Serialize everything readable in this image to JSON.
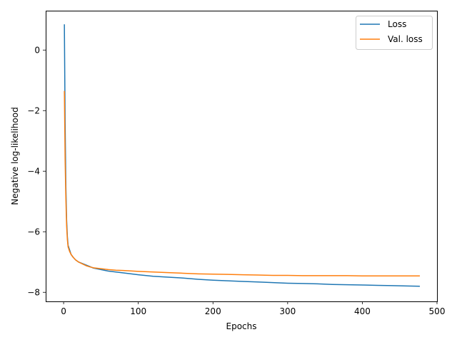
{
  "chart_data": {
    "type": "line",
    "title": "",
    "xlabel": "Epochs",
    "ylabel": "Negative log-likelihood",
    "xlim": [
      -24,
      500
    ],
    "ylim": [
      -8.3,
      1.3
    ],
    "xticks": [
      0,
      100,
      200,
      300,
      400,
      500
    ],
    "yticks": [
      -8,
      -6,
      -4,
      -2,
      0
    ],
    "grid": false,
    "legend_position": "top-right",
    "series": [
      {
        "name": "Loss",
        "color": "#1f77b4",
        "points": [
          [
            1,
            0.85
          ],
          [
            2,
            -2.4
          ],
          [
            3,
            -4.5
          ],
          [
            4,
            -5.6
          ],
          [
            5,
            -6.15
          ],
          [
            6,
            -6.45
          ],
          [
            8,
            -6.6
          ],
          [
            10,
            -6.75
          ],
          [
            13,
            -6.85
          ],
          [
            16,
            -6.93
          ],
          [
            20,
            -7.0
          ],
          [
            25,
            -7.05
          ],
          [
            30,
            -7.1
          ],
          [
            35,
            -7.15
          ],
          [
            40,
            -7.2
          ],
          [
            50,
            -7.25
          ],
          [
            60,
            -7.3
          ],
          [
            70,
            -7.33
          ],
          [
            80,
            -7.36
          ],
          [
            100,
            -7.42
          ],
          [
            120,
            -7.47
          ],
          [
            140,
            -7.5
          ],
          [
            160,
            -7.53
          ],
          [
            180,
            -7.57
          ],
          [
            200,
            -7.6
          ],
          [
            220,
            -7.62
          ],
          [
            240,
            -7.64
          ],
          [
            260,
            -7.66
          ],
          [
            280,
            -7.68
          ],
          [
            300,
            -7.7
          ],
          [
            320,
            -7.71
          ],
          [
            340,
            -7.72
          ],
          [
            360,
            -7.74
          ],
          [
            380,
            -7.75
          ],
          [
            400,
            -7.76
          ],
          [
            420,
            -7.77
          ],
          [
            440,
            -7.78
          ],
          [
            460,
            -7.79
          ],
          [
            477,
            -7.8
          ]
        ]
      },
      {
        "name": "Val. loss",
        "color": "#ff7f0e",
        "points": [
          [
            1,
            -1.35
          ],
          [
            2,
            -3.6
          ],
          [
            3,
            -4.9
          ],
          [
            4,
            -5.8
          ],
          [
            5,
            -6.25
          ],
          [
            6,
            -6.5
          ],
          [
            8,
            -6.65
          ],
          [
            10,
            -6.75
          ],
          [
            13,
            -6.85
          ],
          [
            16,
            -6.93
          ],
          [
            20,
            -7.0
          ],
          [
            25,
            -7.06
          ],
          [
            30,
            -7.12
          ],
          [
            35,
            -7.16
          ],
          [
            40,
            -7.19
          ],
          [
            50,
            -7.22
          ],
          [
            60,
            -7.25
          ],
          [
            70,
            -7.27
          ],
          [
            80,
            -7.28
          ],
          [
            100,
            -7.31
          ],
          [
            120,
            -7.33
          ],
          [
            140,
            -7.35
          ],
          [
            160,
            -7.37
          ],
          [
            180,
            -7.39
          ],
          [
            200,
            -7.4
          ],
          [
            220,
            -7.41
          ],
          [
            240,
            -7.42
          ],
          [
            260,
            -7.43
          ],
          [
            280,
            -7.44
          ],
          [
            300,
            -7.44
          ],
          [
            320,
            -7.45
          ],
          [
            340,
            -7.45
          ],
          [
            360,
            -7.45
          ],
          [
            380,
            -7.45
          ],
          [
            400,
            -7.46
          ],
          [
            420,
            -7.46
          ],
          [
            440,
            -7.46
          ],
          [
            460,
            -7.46
          ],
          [
            477,
            -7.46
          ]
        ]
      }
    ]
  }
}
